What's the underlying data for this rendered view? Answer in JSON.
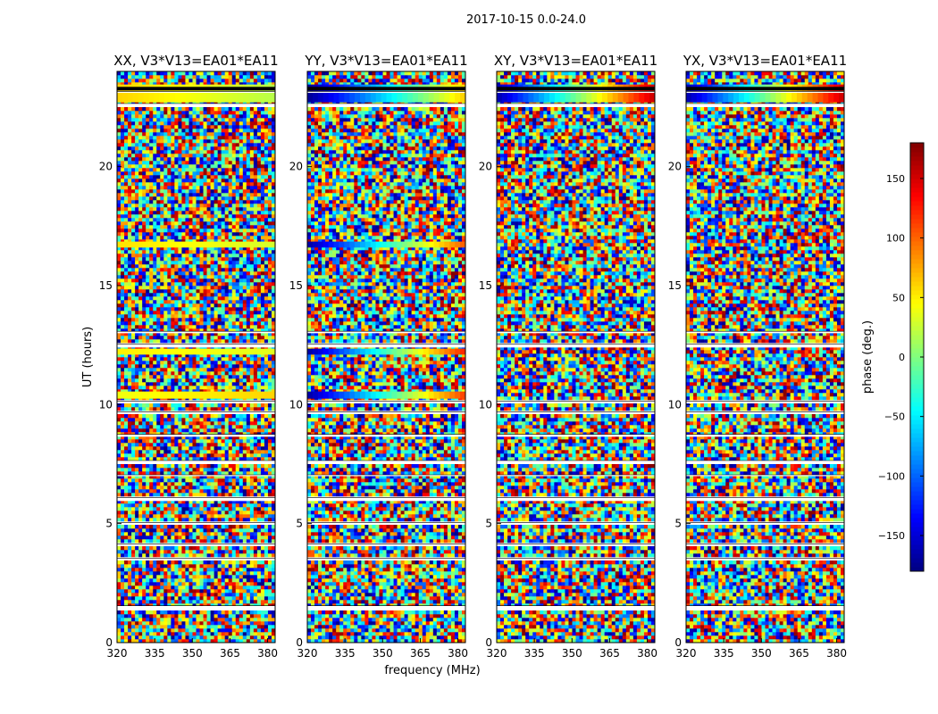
{
  "figure": {
    "suptitle": "2017-10-15 0.0-24.0",
    "xlabel": "frequency (MHz)",
    "ylabel": "UT (hours)",
    "colorbar_label": "phase (deg.)"
  },
  "chart_data": {
    "type": "heatmap",
    "colormap": "jet",
    "panels": [
      {
        "title": "XX, V3*V13=EA01*EA11",
        "correlation": "XX"
      },
      {
        "title": "YY, V3*V13=EA01*EA11",
        "correlation": "YY"
      },
      {
        "title": "XY, V3*V13=EA01*EA11",
        "correlation": "XY"
      },
      {
        "title": "YX, V3*V13=EA01*EA11",
        "correlation": "YX"
      }
    ],
    "x_ticks": [
      320,
      335,
      350,
      365,
      380
    ],
    "x_tick_labels": [
      "320",
      "335",
      "350",
      "365",
      "380"
    ],
    "xlim": [
      320,
      383
    ],
    "y_ticks": [
      0,
      5,
      10,
      15,
      20
    ],
    "y_tick_labels": [
      "0",
      "5",
      "10",
      "15",
      "20"
    ],
    "ylim": [
      0,
      24
    ],
    "colorbar": {
      "vmin": -180,
      "vmax": 180,
      "ticks": [
        -150,
        -100,
        -50,
        0,
        50,
        100,
        150
      ],
      "tick_labels": [
        "−150",
        "−100",
        "−50",
        "0",
        "50",
        "100",
        "150"
      ]
    },
    "flagged_time_ranges_hours": [
      [
        1.4,
        1.55
      ],
      [
        3.45,
        3.55
      ],
      [
        4.05,
        4.15
      ],
      [
        5.0,
        5.05
      ],
      [
        5.95,
        6.1
      ],
      [
        7.0,
        7.05
      ],
      [
        7.55,
        7.65
      ],
      [
        8.65,
        8.75
      ],
      [
        9.6,
        9.7
      ],
      [
        10.05,
        10.15
      ],
      [
        12.4,
        12.55
      ],
      [
        13.0,
        13.08
      ],
      [
        22.55,
        22.65
      ],
      [
        23.1,
        23.16
      ]
    ],
    "coherent_bands": [
      {
        "panel": "XX",
        "t0": 10.25,
        "t1": 10.55,
        "phase_start": 40,
        "phase_end": 60
      },
      {
        "panel": "XX",
        "t0": 12.1,
        "t1": 12.35,
        "phase_start": 50,
        "phase_end": 35
      },
      {
        "panel": "XX",
        "t0": 16.6,
        "t1": 16.85,
        "phase_start": 55,
        "phase_end": 30
      },
      {
        "panel": "XX",
        "t0": 22.7,
        "t1": 23.45,
        "phase_start": 60,
        "phase_end": 20
      },
      {
        "panel": "YY",
        "t0": 10.25,
        "t1": 10.55,
        "phase_start": -165,
        "phase_end": 110
      },
      {
        "panel": "YY",
        "t0": 12.1,
        "t1": 12.35,
        "phase_start": -165,
        "phase_end": 120
      },
      {
        "panel": "YY",
        "t0": 16.6,
        "t1": 16.85,
        "phase_start": -165,
        "phase_end": 100
      },
      {
        "panel": "YY",
        "t0": 22.7,
        "t1": 23.45,
        "phase_start": -170,
        "phase_end": 60
      },
      {
        "panel": "XY",
        "t0": 22.7,
        "t1": 23.45,
        "phase_start": -160,
        "phase_end": 150
      },
      {
        "panel": "YX",
        "t0": 22.7,
        "t1": 23.45,
        "phase_start": -160,
        "phase_end": 150
      }
    ]
  }
}
